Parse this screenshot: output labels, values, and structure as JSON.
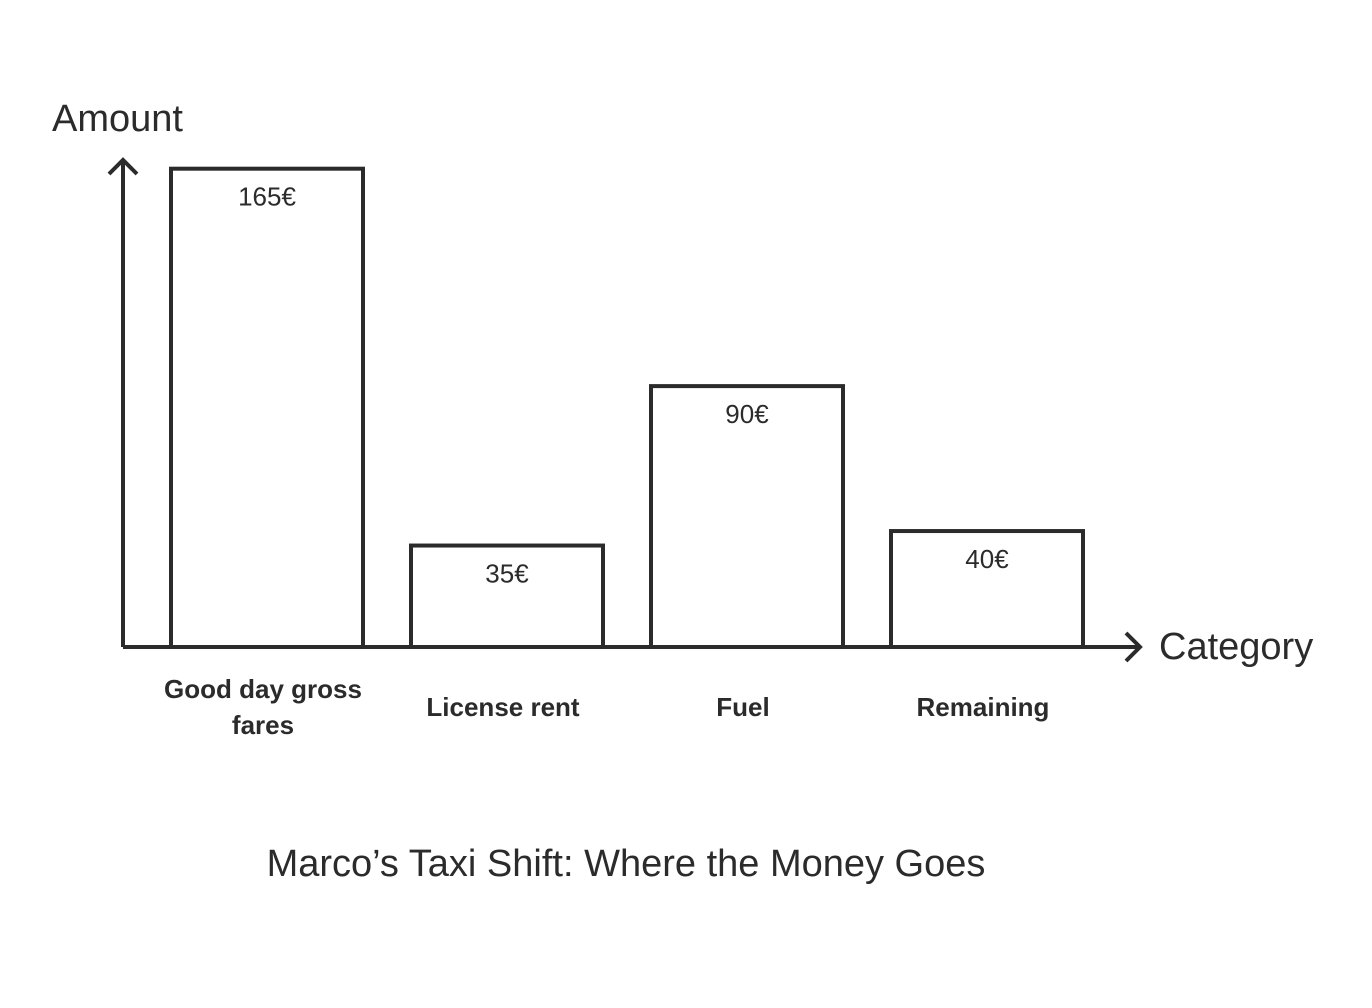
{
  "chart_data": {
    "type": "bar",
    "title": "Marco’s Taxi Shift: Where the Money Goes",
    "x_label": "Category",
    "y_label": "Amount",
    "categories": [
      "Good day gross fares",
      "License rent",
      "Fuel",
      "Remaining"
    ],
    "values": [
      165,
      35,
      90,
      40
    ],
    "value_labels": [
      "165€",
      "35€",
      "90€",
      "40€"
    ],
    "color": "#ffffff",
    "ylim": [
      0,
      168
    ]
  }
}
